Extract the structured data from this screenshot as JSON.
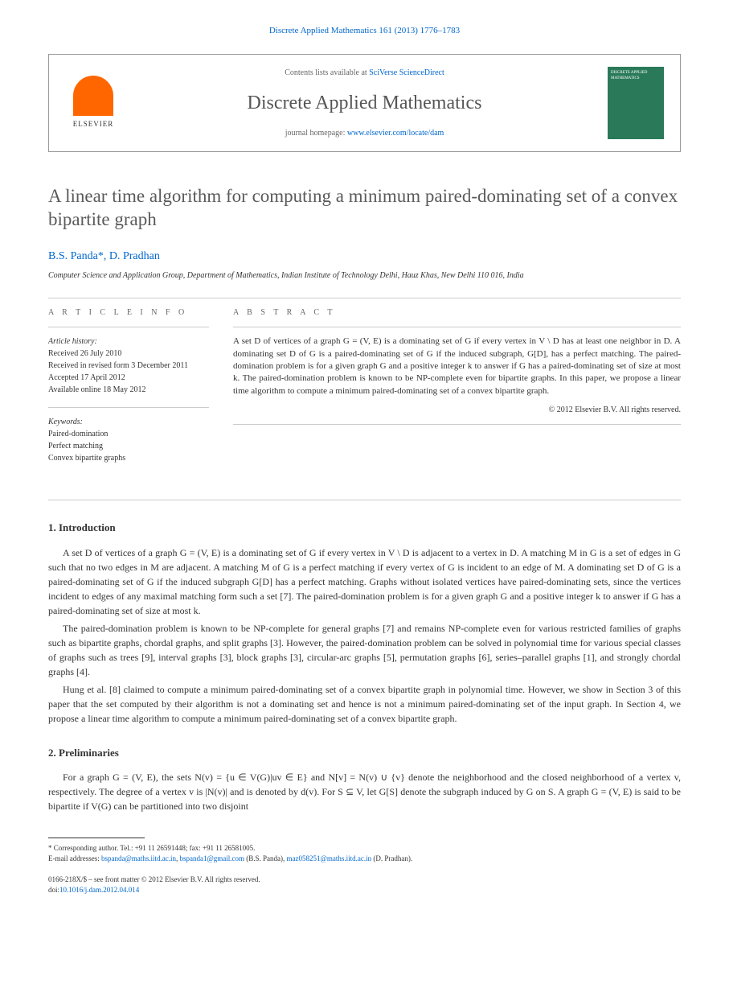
{
  "journal_ref": "Discrete Applied Mathematics 161 (2013) 1776–1783",
  "header": {
    "elsevier_label": "ELSEVIER",
    "contents_prefix": "Contents lists available at ",
    "contents_link": "SciVerse ScienceDirect",
    "journal_name": "Discrete Applied Mathematics",
    "homepage_prefix": "journal homepage: ",
    "homepage_link": "www.elsevier.com/locate/dam",
    "cover_text": "DISCRETE APPLIED MATHEMATICS"
  },
  "title": "A linear time algorithm for computing a minimum paired-dominating set of a convex bipartite graph",
  "authors": "B.S. Panda*, D. Pradhan",
  "affiliation": "Computer Science and Application Group, Department of Mathematics, Indian Institute of Technology Delhi, Hauz Khas, New Delhi 110 016, India",
  "article_info": {
    "heading": "A R T I C L E   I N F O",
    "history_label": "Article history:",
    "history": [
      "Received 26 July 2010",
      "Received in revised form 3 December 2011",
      "Accepted 17 April 2012",
      "Available online 18 May 2012"
    ],
    "keywords_label": "Keywords:",
    "keywords": [
      "Paired-domination",
      "Perfect matching",
      "Convex bipartite graphs"
    ]
  },
  "abstract": {
    "heading": "A B S T R A C T",
    "text": "A set D of vertices of a graph G = (V, E) is a dominating set of G if every vertex in V \\ D has at least one neighbor in D. A dominating set D of G is a paired-dominating set of G if the induced subgraph, G[D], has a perfect matching. The paired-domination problem is for a given graph G and a positive integer k to answer if G has a paired-dominating set of size at most k. The paired-domination problem is known to be NP-complete even for bipartite graphs. In this paper, we propose a linear time algorithm to compute a minimum paired-dominating set of a convex bipartite graph.",
    "copyright": "© 2012 Elsevier B.V. All rights reserved."
  },
  "sections": {
    "intro_heading": "1. Introduction",
    "intro_p1": "A set D of vertices of a graph G = (V, E) is a dominating set of G if every vertex in V \\ D is adjacent to a vertex in D. A matching M in G is a set of edges in G such that no two edges in M are adjacent. A matching M of G is a perfect matching if every vertex of G is incident to an edge of M. A dominating set D of G is a paired-dominating set of G if the induced subgraph G[D] has a perfect matching. Graphs without isolated vertices have paired-dominating sets, since the vertices incident to edges of any maximal matching form such a set [7]. The paired-domination problem is for a given graph G and a positive integer k to answer if G has a paired-dominating set of size at most k.",
    "intro_p2": "The paired-domination problem is known to be NP-complete for general graphs [7] and remains NP-complete even for various restricted families of graphs such as bipartite graphs, chordal graphs, and split graphs [3]. However, the paired-domination problem can be solved in polynomial time for various special classes of graphs such as trees [9], interval graphs [3], block graphs [3], circular-arc graphs [5], permutation graphs [6], series–parallel graphs [1], and strongly chordal graphs [4].",
    "intro_p3": "Hung et al. [8] claimed to compute a minimum paired-dominating set of a convex bipartite graph in polynomial time. However, we show in Section 3 of this paper that the set computed by their algorithm is not a dominating set and hence is not a minimum paired-dominating set of the input graph. In Section 4, we propose a linear time algorithm to compute a minimum paired-dominating set of a convex bipartite graph.",
    "prelim_heading": "2. Preliminaries",
    "prelim_p1": "For a graph G = (V, E), the sets N(v) = {u ∈ V(G)|uv ∈ E} and N[v] = N(v) ∪ {v} denote the neighborhood and the closed neighborhood of a vertex v, respectively. The degree of a vertex v is |N(v)| and is denoted by d(v). For S ⊆ V, let G[S] denote the subgraph induced by G on S. A graph G = (V, E) is said to be bipartite if V(G) can be partitioned into two disjoint"
  },
  "footnote": {
    "corr_label": "* Corresponding author. Tel.: +91 11 26591448; fax: +91 11 26581005.",
    "email_label": "E-mail addresses: ",
    "email1": "bspanda@maths.iitd.ac.in",
    "email1_sep": ", ",
    "email2": "bspanda1@gmail.com",
    "email2_after": " (B.S. Panda), ",
    "email3": "maz058251@maths.iitd.ac.in",
    "email3_after": " (D. Pradhan)."
  },
  "footer": {
    "line1": "0166-218X/$ – see front matter © 2012 Elsevier B.V. All rights reserved.",
    "doi_label": "doi:",
    "doi": "10.1016/j.dam.2012.04.014"
  },
  "colors": {
    "link": "#0066cc",
    "title_gray": "#5a5a5a",
    "elsevier_orange": "#ff6600",
    "cover_green": "#2a7a5a"
  }
}
